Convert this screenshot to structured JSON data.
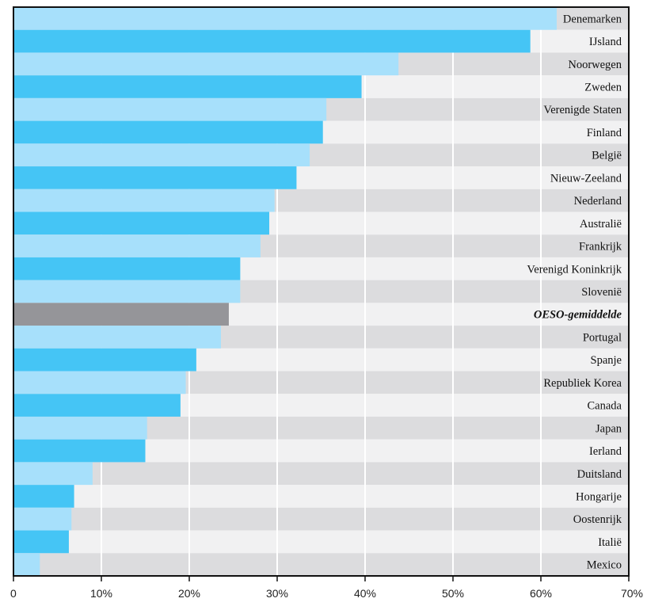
{
  "chart_data": {
    "type": "bar",
    "orientation": "horizontal",
    "title": "",
    "xlabel": "",
    "ylabel": "",
    "xlim": [
      0,
      70
    ],
    "x_ticks": [
      0,
      10,
      20,
      30,
      40,
      50,
      60,
      70
    ],
    "x_tick_labels": [
      "0",
      "10%",
      "20%",
      "30%",
      "40%",
      "50%",
      "60%",
      "70%"
    ],
    "grid": "vertical",
    "highlight_category": "OESO-gemiddelde",
    "colors": {
      "bar_dark": "#45c5f5",
      "bar_light": "#a7e0fb",
      "bar_average": "#959599",
      "row_band_dark": "#dcdcde",
      "row_band_light": "#f1f1f2",
      "gridline": "#ffffff",
      "frame": "#111111"
    },
    "categories": [
      "Denemarken",
      "IJsland",
      "Noorwegen",
      "Zweden",
      "Verenigde Staten",
      "Finland",
      "België",
      "Nieuw-Zeeland",
      "Nederland",
      "Australië",
      "Frankrijk",
      "Verenigd Koninkrijk",
      "Slovenië",
      "OESO-gemiddelde",
      "Portugal",
      "Spanje",
      "Republiek Korea",
      "Canada",
      "Japan",
      "Ierland",
      "Duitsland",
      "Hongarije",
      "Oostenrijk",
      "Italië",
      "Mexico"
    ],
    "values": [
      61.8,
      58.8,
      43.8,
      39.6,
      35.6,
      35.2,
      33.7,
      32.2,
      29.7,
      29.1,
      28.1,
      25.8,
      25.8,
      24.5,
      23.6,
      20.8,
      19.6,
      19.0,
      15.2,
      15.0,
      9.0,
      6.9,
      6.6,
      6.3,
      3.0
    ]
  }
}
